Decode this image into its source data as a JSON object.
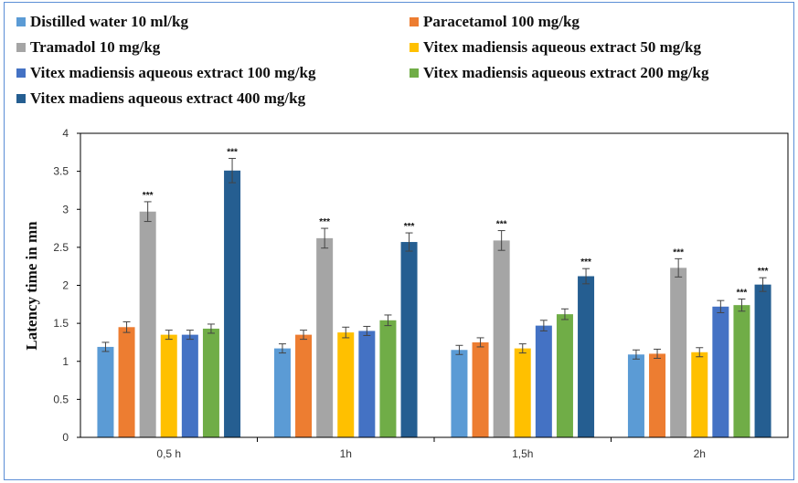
{
  "colors": {
    "frame": "#5b8ed6",
    "axis": "#000000",
    "tick_text": "#333333",
    "error_bar": "#444444"
  },
  "chart_data": {
    "type": "bar",
    "categories": [
      "0,5 h",
      "1h",
      "1,5h",
      "2h"
    ],
    "ylabel": "Latency time in mn",
    "xlabel": "",
    "ylim": [
      0,
      4
    ],
    "yticks": [
      "0",
      "0.5",
      "1",
      "1.5",
      "2",
      "2.5",
      "3",
      "3.5",
      "4"
    ],
    "grid": false,
    "legend_position": "top",
    "series": [
      {
        "name": "Distilled water 10 ml/kg",
        "color": "#5b9bd5",
        "values": [
          1.19,
          1.17,
          1.15,
          1.09
        ],
        "errors": [
          0.06,
          0.06,
          0.06,
          0.06
        ],
        "sig": [
          "",
          "",
          "",
          ""
        ]
      },
      {
        "name": "Paracetamol 100 mg/kg",
        "color": "#ed7d31",
        "values": [
          1.45,
          1.35,
          1.25,
          1.1
        ],
        "errors": [
          0.07,
          0.06,
          0.06,
          0.06
        ],
        "sig": [
          "",
          "",
          "",
          ""
        ]
      },
      {
        "name": "Tramadol 10 mg/kg",
        "color": "#a5a5a5",
        "values": [
          2.97,
          2.62,
          2.59,
          2.23
        ],
        "errors": [
          0.13,
          0.13,
          0.13,
          0.12
        ],
        "sig": [
          "***",
          "***",
          "***",
          "***"
        ]
      },
      {
        "name": "Vitex madiensis aqueous extract 50 mg/kg",
        "color": "#ffc000",
        "values": [
          1.35,
          1.38,
          1.17,
          1.12
        ],
        "errors": [
          0.06,
          0.07,
          0.06,
          0.06
        ],
        "sig": [
          "",
          "",
          "",
          ""
        ]
      },
      {
        "name": "Vitex madiensis  aqueous extract 100 mg/kg",
        "color": "#4472c4",
        "values": [
          1.35,
          1.4,
          1.47,
          1.72
        ],
        "errors": [
          0.06,
          0.06,
          0.07,
          0.08
        ],
        "sig": [
          "",
          "",
          "",
          ""
        ]
      },
      {
        "name": "Vitex madiensis aqueous extract 200 mg/kg",
        "color": "#70ad47",
        "values": [
          1.43,
          1.54,
          1.62,
          1.74
        ],
        "errors": [
          0.06,
          0.07,
          0.07,
          0.08
        ],
        "sig": [
          "",
          "",
          "",
          "***"
        ]
      },
      {
        "name": "Vitex madiens aqueous extract 400 mg/kg",
        "color": "#255e91",
        "values": [
          3.51,
          2.57,
          2.12,
          2.01
        ],
        "errors": [
          0.16,
          0.12,
          0.1,
          0.09
        ],
        "sig": [
          "***",
          "***",
          "***",
          "***"
        ]
      }
    ]
  }
}
